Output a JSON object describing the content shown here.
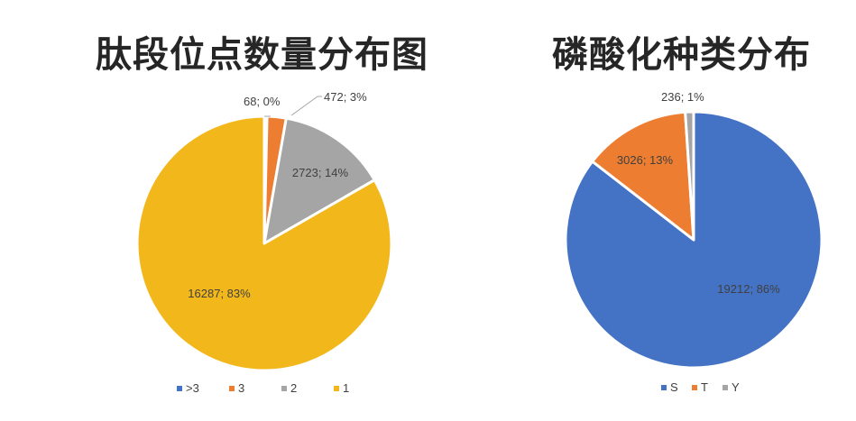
{
  "chart_data": [
    {
      "type": "pie",
      "title": "肽段位点数量分布图",
      "legend": "bottom",
      "categories": [
        ">3",
        "3",
        "2",
        "1"
      ],
      "values": [
        68,
        472,
        2723,
        16287
      ],
      "data_labels": [
        "68; 0%",
        "472; 3%",
        "2723; 14%",
        "16287; 83%"
      ],
      "colors": [
        "#4472C4",
        "#ED7D31",
        "#A5A5A5",
        "#F2B81B"
      ]
    },
    {
      "type": "pie",
      "title": "磷酸化种类分布",
      "legend": "bottom",
      "categories": [
        "S",
        "T",
        "Y"
      ],
      "values": [
        19212,
        3026,
        236
      ],
      "data_labels": [
        "19212; 86%",
        "3026; 13%",
        "236; 1%"
      ],
      "colors": [
        "#4472C4",
        "#ED7D31",
        "#A5A5A5"
      ]
    }
  ]
}
